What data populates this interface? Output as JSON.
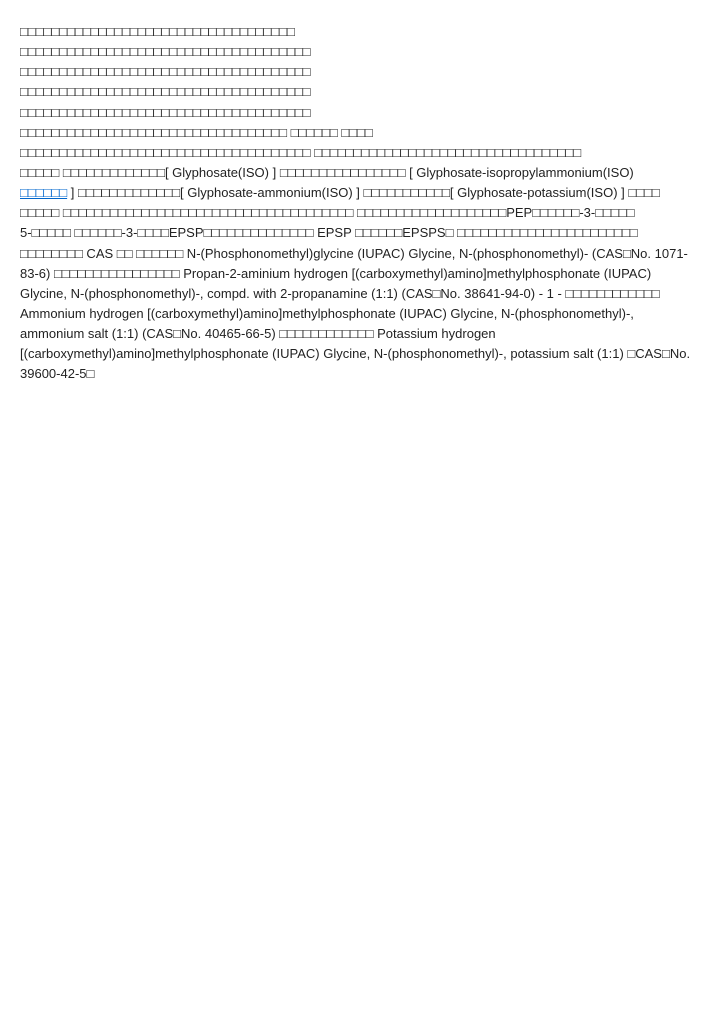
{
  "document": {
    "line1": "□□□□□□□□□□□□□□□□□□□□□□□□□□□□□□□□□□□",
    "line2": "□□□□□□□□□□□□□□□□□□□□□□□□□□□□□□□□□□□□□",
    "line3": "□□□□□□□□□□□□□□□□□□□□□□□□□□□□□□□□□□□□□",
    "line4": "□□□□□□□□□□□□□□□□□□□□□□□□□□□□□□□□□□□□□",
    "line5": "□□□□□□□□□□□□□□□□□□□□□□□□□□□□□□□□□□□□□",
    "line6a": "□□□□□□□□□□□□□□□□□□□□□□□□□□□□□□□□□□ □□□□□□ □□□□",
    "line7a": "□□□□□□□□□□□□□□□□□□□□□□□□□□□□□□□□□□□□□ □□□□□□□□□□□□□□□□□□□□□□□□□□□□□□□□□□",
    "line8a": "□□□□□ □□□□□□□□□□□□□[ Glyphosate(ISO) ] □□□□□□□□□□□□□□□□ [ Glyphosate-isopropylammonium(ISO) ",
    "linkText": "□□□□□□",
    "line9b": " ] □□□□□□□□□□□□□[ Glyphosate-ammonium(ISO) ] □□□□□□□□□□□[ Glyphosate-potassium(ISO) ] □□□□",
    "line10": "□□□□□ □□□□□□□□□□□□□□□□□□□□□□□□□□□□□□□□□□□□□ □□□□□□□□□□□□□□□□□□□PEP□□□□□□-3-□□□□□",
    "line11": "5-□□□□□ □□□□□□-3-□□□□EPSP□□□□□□□□□□□□□□ EPSP □□□□□□EPSPS□ □□□□□□□□□□□□□□□□□□□□□□□",
    "line12": "□□□□□□□□ CAS □□ □□□□□□ N-(Phosphonomethyl)glycine (IUPAC) Glycine, N-(phosphonomethyl)- (CAS□No. 1071-83-6) □□□□□□□□□□□□□□□□ Propan-2-aminium hydrogen [(carboxymethyl)amino]methylphosphonate (IUPAC) Glycine, N-(phosphonomethyl)-, compd. with 2-propanamine (1:1) (CAS□No. 38641-94-0) - 1 - □□□□□□□□□□□□ Ammonium hydrogen [(carboxymethyl)amino]methylphosphonate (IUPAC) Glycine, N-(phosphonomethyl)-, ammonium salt (1:1) (CAS□No. 40465-66-5) □□□□□□□□□□□□ Potassium hydrogen [(carboxymethyl)amino]methylphosphonate (IUPAC) Glycine, N-(phosphonomethyl)-, potassium salt (1:1) □CAS□No. 39600-42-5□"
  }
}
